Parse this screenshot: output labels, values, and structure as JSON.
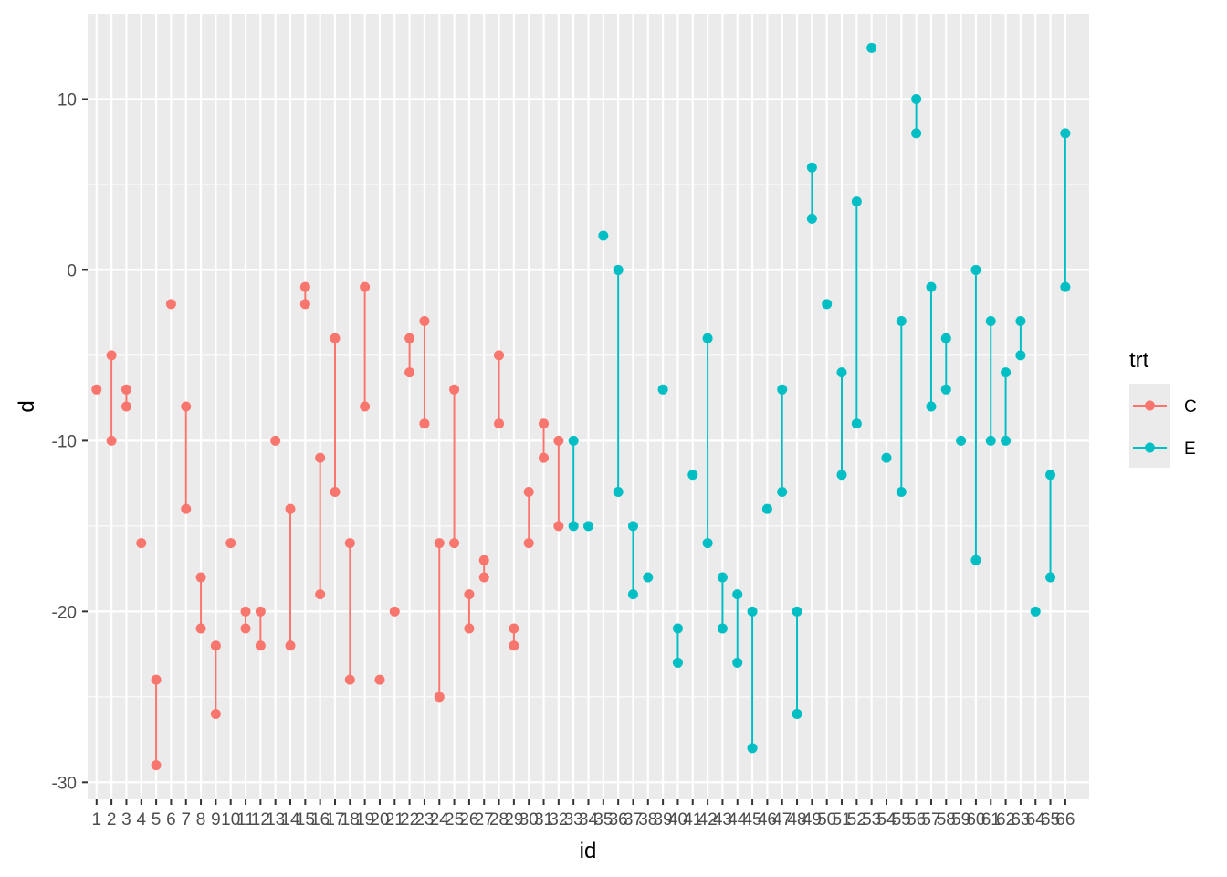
{
  "chart_data": {
    "type": "line",
    "xlabel": "id",
    "ylabel": "d",
    "ylim": [
      -31,
      15
    ],
    "yticks": [
      -30,
      -20,
      -10,
      0,
      10
    ],
    "x_categories": [
      "1",
      "2",
      "3",
      "4",
      "5",
      "6",
      "7",
      "8",
      "9",
      "10",
      "11",
      "12",
      "13",
      "14",
      "15",
      "16",
      "17",
      "18",
      "19",
      "20",
      "21",
      "22",
      "23",
      "24",
      "25",
      "26",
      "27",
      "28",
      "29",
      "30",
      "31",
      "32",
      "33",
      "34",
      "35",
      "36",
      "37",
      "38",
      "39",
      "40",
      "41",
      "42",
      "43",
      "44",
      "45",
      "46",
      "47",
      "48",
      "49",
      "50",
      "51",
      "52",
      "53",
      "54",
      "55",
      "56",
      "57",
      "58",
      "59",
      "60",
      "61",
      "62",
      "63",
      "64",
      "65",
      "66"
    ],
    "grid": true,
    "legend": {
      "title": "trt",
      "placement": "right",
      "entries": [
        {
          "name": "C",
          "color": "#F8766D"
        },
        {
          "name": "E",
          "color": "#00BFC4"
        }
      ]
    },
    "series": [
      {
        "name": "C",
        "color": "#F8766D",
        "points": [
          {
            "id": "1",
            "values": [
              -7
            ]
          },
          {
            "id": "2",
            "values": [
              -5,
              -10
            ]
          },
          {
            "id": "3",
            "values": [
              -7,
              -8
            ]
          },
          {
            "id": "4",
            "values": [
              -16
            ]
          },
          {
            "id": "5",
            "values": [
              -24,
              -29
            ]
          },
          {
            "id": "6",
            "values": [
              -2
            ]
          },
          {
            "id": "7",
            "values": [
              -8,
              -14
            ]
          },
          {
            "id": "8",
            "values": [
              -18,
              -21
            ]
          },
          {
            "id": "9",
            "values": [
              -22,
              -26
            ]
          },
          {
            "id": "10",
            "values": [
              -16
            ]
          },
          {
            "id": "11",
            "values": [
              -20,
              -21
            ]
          },
          {
            "id": "12",
            "values": [
              -20,
              -22
            ]
          },
          {
            "id": "13",
            "values": [
              -10
            ]
          },
          {
            "id": "14",
            "values": [
              -14,
              -22
            ]
          },
          {
            "id": "15",
            "values": [
              -1,
              -2
            ]
          },
          {
            "id": "16",
            "values": [
              -11,
              -19
            ]
          },
          {
            "id": "17",
            "values": [
              -4,
              -13
            ]
          },
          {
            "id": "18",
            "values": [
              -16,
              -24
            ]
          },
          {
            "id": "19",
            "values": [
              -1,
              -8
            ]
          },
          {
            "id": "20",
            "values": [
              -24
            ]
          },
          {
            "id": "21",
            "values": [
              -20
            ]
          },
          {
            "id": "22",
            "values": [
              -4,
              -6
            ]
          },
          {
            "id": "23",
            "values": [
              -3,
              -9
            ]
          },
          {
            "id": "24",
            "values": [
              -16,
              -25
            ]
          },
          {
            "id": "25",
            "values": [
              -7,
              -16
            ]
          },
          {
            "id": "26",
            "values": [
              -19,
              -21
            ]
          },
          {
            "id": "27",
            "values": [
              -17,
              -18
            ]
          },
          {
            "id": "28",
            "values": [
              -5,
              -9
            ]
          },
          {
            "id": "29",
            "values": [
              -21,
              -22
            ]
          },
          {
            "id": "30",
            "values": [
              -13,
              -16
            ]
          },
          {
            "id": "31",
            "values": [
              -9,
              -11
            ]
          },
          {
            "id": "32",
            "values": [
              -10,
              -15
            ]
          }
        ]
      },
      {
        "name": "E",
        "color": "#00BFC4",
        "points": [
          {
            "id": "33",
            "values": [
              -10,
              -15
            ]
          },
          {
            "id": "34",
            "values": [
              -15
            ]
          },
          {
            "id": "35",
            "values": [
              2
            ]
          },
          {
            "id": "36",
            "values": [
              0,
              -13
            ]
          },
          {
            "id": "37",
            "values": [
              -15,
              -19
            ]
          },
          {
            "id": "38",
            "values": [
              -18
            ]
          },
          {
            "id": "39",
            "values": [
              -7
            ]
          },
          {
            "id": "40",
            "values": [
              -21,
              -23
            ]
          },
          {
            "id": "41",
            "values": [
              -12
            ]
          },
          {
            "id": "42",
            "values": [
              -4,
              -16
            ]
          },
          {
            "id": "43",
            "values": [
              -18,
              -21
            ]
          },
          {
            "id": "44",
            "values": [
              -19,
              -23
            ]
          },
          {
            "id": "45",
            "values": [
              -20,
              -28
            ]
          },
          {
            "id": "46",
            "values": [
              -14
            ]
          },
          {
            "id": "47",
            "values": [
              -7,
              -13
            ]
          },
          {
            "id": "48",
            "values": [
              -20,
              -26
            ]
          },
          {
            "id": "49",
            "values": [
              6,
              3
            ]
          },
          {
            "id": "50",
            "values": [
              -2
            ]
          },
          {
            "id": "51",
            "values": [
              -6,
              -12
            ]
          },
          {
            "id": "52",
            "values": [
              4,
              -9
            ]
          },
          {
            "id": "53",
            "values": [
              13
            ]
          },
          {
            "id": "54",
            "values": [
              -11
            ]
          },
          {
            "id": "55",
            "values": [
              -3,
              -13
            ]
          },
          {
            "id": "56",
            "values": [
              10,
              8
            ]
          },
          {
            "id": "57",
            "values": [
              -1,
              -8
            ]
          },
          {
            "id": "58",
            "values": [
              -4,
              -7
            ]
          },
          {
            "id": "59",
            "values": [
              -10
            ]
          },
          {
            "id": "60",
            "values": [
              0,
              -17
            ]
          },
          {
            "id": "61",
            "values": [
              -3,
              -10
            ]
          },
          {
            "id": "62",
            "values": [
              -6,
              -10
            ]
          },
          {
            "id": "63",
            "values": [
              -3,
              -5
            ]
          },
          {
            "id": "64",
            "values": [
              -20
            ]
          },
          {
            "id": "65",
            "values": [
              -12,
              -18
            ]
          },
          {
            "id": "66",
            "values": [
              8,
              -1
            ]
          }
        ]
      }
    ]
  }
}
